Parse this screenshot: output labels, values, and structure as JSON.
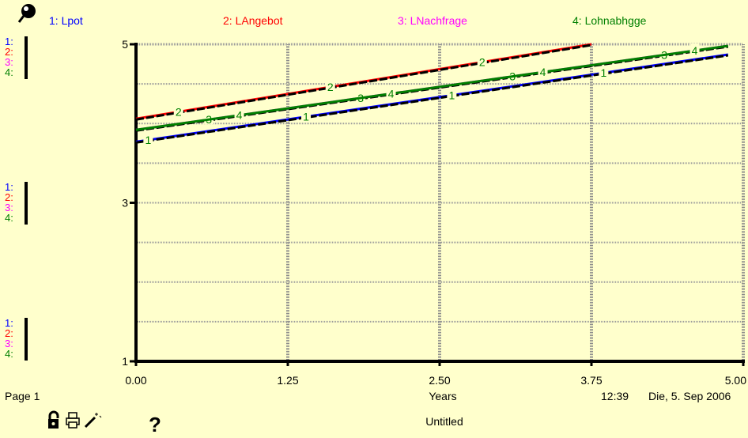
{
  "legend": [
    {
      "label": "1: Lpot",
      "color": "#0000FF"
    },
    {
      "label": "2: LAngebot",
      "color": "#FF0000"
    },
    {
      "label": "3: LNachfrage",
      "color": "#FF00FF"
    },
    {
      "label": "4: Lohnabhgge",
      "color": "#008000"
    }
  ],
  "scale_markers": [
    "1:",
    "2:",
    "3:",
    "4:"
  ],
  "footer": {
    "page": "Page 1",
    "xlabel": "Years",
    "time": "12:39",
    "date": "Die, 5. Sep 2006",
    "title": "Untitled",
    "help": "?"
  },
  "chart_data": {
    "type": "line",
    "xlabel": "Years",
    "ylabel": "",
    "xlim": [
      0,
      5
    ],
    "ylim": [
      1,
      5
    ],
    "x_ticks": [
      "0.00",
      "1.25",
      "2.50",
      "3.75",
      "5.00"
    ],
    "y_ticks": [
      "5",
      "3",
      "1"
    ],
    "grid": true,
    "legend_position": "top",
    "series": [
      {
        "name": "1: Lpot",
        "marker": "1",
        "color": "#0000FF",
        "x": [
          0,
          4.875
        ],
        "y": [
          3.77,
          4.87
        ],
        "marker_x": [
          0.1,
          1.4,
          2.6,
          3.85
        ]
      },
      {
        "name": "2: LAngebot",
        "marker": "2",
        "color": "#FF0000",
        "x": [
          0,
          3.75
        ],
        "y": [
          4.06,
          5.0
        ],
        "marker_x": [
          0.35,
          1.6,
          2.85
        ]
      },
      {
        "name": "3: LNachfrage",
        "marker": "3",
        "color": "#FF00FF",
        "x": [
          0,
          4.875
        ],
        "y": [
          3.92,
          4.98
        ],
        "marker_x": [
          0.6,
          1.85,
          3.1,
          4.35
        ]
      },
      {
        "name": "4: Lohnabhgge",
        "marker": "4",
        "color": "#008000",
        "x": [
          0,
          4.875
        ],
        "y": [
          3.92,
          4.98
        ],
        "marker_x": [
          0.85,
          2.1,
          3.35,
          4.6
        ]
      }
    ]
  }
}
